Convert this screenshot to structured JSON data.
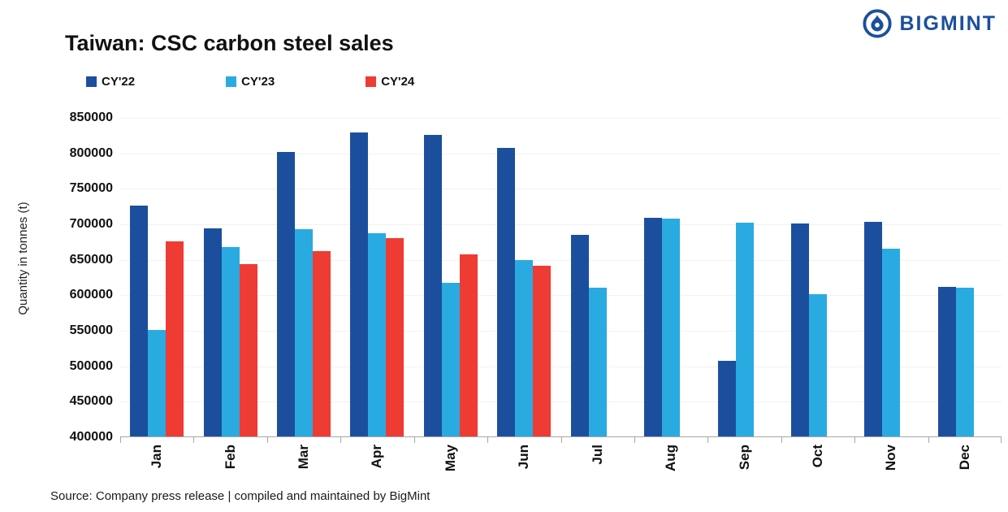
{
  "logo": {
    "text": "BIGMINT",
    "color": "#1B4F9E"
  },
  "title": "Taiwan: CSC carbon steel sales",
  "source": "Source: Company press release | compiled and maintained by BigMint",
  "chart_data": {
    "type": "bar",
    "title": "Taiwan: CSC carbon steel sales",
    "categories": [
      "Jan",
      "Feb",
      "Mar",
      "Apr",
      "May",
      "Jun",
      "Jul",
      "Aug",
      "Sep",
      "Oct",
      "Nov",
      "Dec"
    ],
    "series": [
      {
        "name": "CY'22",
        "color": "#1B4F9E",
        "values": [
          725000,
          693000,
          801000,
          828000,
          825000,
          807000,
          684000,
          708000,
          507000,
          700000,
          702000,
          611000
        ]
      },
      {
        "name": "CY'23",
        "color": "#29ABE2",
        "values": [
          550000,
          667000,
          692000,
          686000,
          617000,
          648000,
          610000,
          707000,
          701000,
          600000,
          665000,
          610000
        ]
      },
      {
        "name": "CY'24",
        "color": "#EE3B33",
        "values": [
          675000,
          643000,
          661000,
          679000,
          656000,
          641000,
          null,
          null,
          null,
          null,
          null,
          null
        ]
      }
    ],
    "xlabel": "",
    "ylabel": "Quantity in tonnes (t)",
    "ylim": [
      400000,
      850000
    ],
    "ytick_step": 50000,
    "grid": "faint-horizontal",
    "legend_position": "top"
  }
}
